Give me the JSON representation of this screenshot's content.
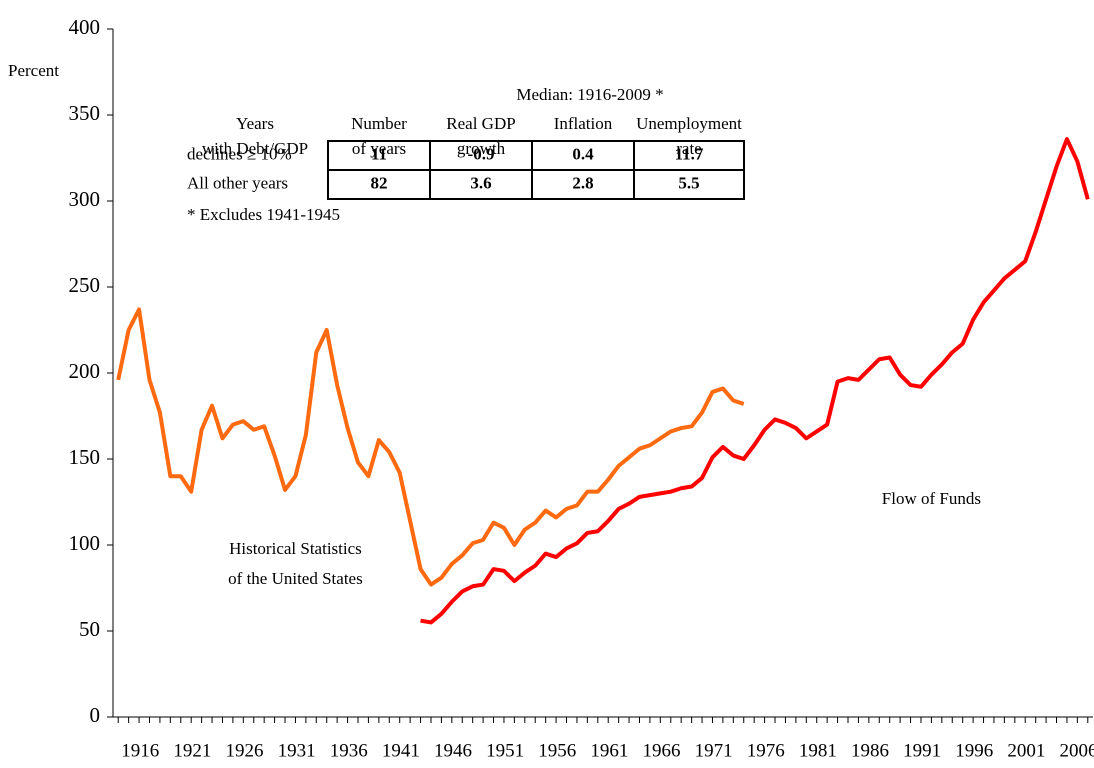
{
  "chart_data": {
    "type": "line",
    "y_label": "Percent",
    "x": [
      1916,
      1917,
      1918,
      1919,
      1920,
      1921,
      1922,
      1923,
      1924,
      1925,
      1926,
      1927,
      1928,
      1929,
      1930,
      1931,
      1932,
      1933,
      1934,
      1935,
      1936,
      1937,
      1938,
      1939,
      1940,
      1941,
      1942,
      1943,
      1944,
      1945,
      1946,
      1947,
      1948,
      1949,
      1950,
      1951,
      1952,
      1953,
      1954,
      1955,
      1956,
      1957,
      1958,
      1959,
      1960,
      1961,
      1962,
      1963,
      1964,
      1965,
      1966,
      1967,
      1968,
      1969,
      1970,
      1971,
      1972,
      1973,
      1974,
      1975,
      1976,
      1977,
      1978,
      1979,
      1980,
      1981,
      1982,
      1983,
      1984,
      1985,
      1986,
      1987,
      1988,
      1989,
      1990,
      1991,
      1992,
      1993,
      1994,
      1995,
      1996,
      1997,
      1998,
      1999,
      2000,
      2001,
      2002,
      2003,
      2004,
      2005,
      2006,
      2007,
      2008,
      2009
    ],
    "series": [
      {
        "color": "#ff6a10",
        "values": [
          196,
          225,
          237,
          196,
          177,
          140,
          140,
          131,
          167,
          181,
          162,
          170,
          172,
          167,
          169,
          152,
          132,
          140,
          164,
          212,
          225,
          193,
          168,
          148,
          140,
          161,
          154,
          142,
          114,
          86,
          77,
          81,
          89,
          94,
          101,
          103,
          113,
          110,
          100,
          109,
          113,
          120,
          116,
          121,
          123,
          131,
          131,
          138,
          146,
          151,
          156,
          158,
          162,
          166,
          168,
          169,
          177,
          189,
          191,
          184,
          182,
          null,
          null,
          null,
          null,
          null,
          null,
          null,
          null,
          null,
          null,
          null,
          null,
          null,
          null,
          null,
          null,
          null,
          null,
          null,
          null,
          null,
          null,
          null,
          null,
          null,
          null,
          null,
          null,
          null,
          null,
          null,
          null,
          null
        ]
      },
      {
        "color": "#ff0000",
        "values": [
          null,
          null,
          null,
          null,
          null,
          null,
          null,
          null,
          null,
          null,
          null,
          null,
          null,
          null,
          null,
          null,
          null,
          null,
          null,
          null,
          null,
          null,
          null,
          null,
          null,
          null,
          null,
          null,
          null,
          56,
          55,
          60,
          67,
          73,
          76,
          77,
          86,
          85,
          79,
          84,
          88,
          95,
          93,
          98,
          101,
          107,
          108,
          114,
          121,
          124,
          128,
          129,
          130,
          131,
          133,
          134,
          139,
          151,
          157,
          152,
          150,
          158,
          167,
          173,
          171,
          168,
          162,
          166,
          170,
          195,
          197,
          196,
          202,
          208,
          209,
          199,
          193,
          192,
          199,
          205,
          212,
          217,
          231,
          241,
          248,
          255,
          260,
          265,
          282,
          301,
          320,
          336,
          323,
          301
        ]
      }
    ],
    "xlim": [
      1915.5,
      2009.5
    ],
    "xticks": [
      1916,
      1921,
      1926,
      1931,
      1936,
      1941,
      1946,
      1951,
      1956,
      1961,
      1966,
      1971,
      1976,
      1981,
      1986,
      1991,
      1996,
      2001,
      2006
    ],
    "ylim": [
      0,
      400
    ],
    "yticks": [
      0,
      50,
      100,
      150,
      200,
      250,
      300,
      350,
      400
    ],
    "annotations": [
      {
        "lines": [
          "Historical Statistics",
          "of the United States"
        ],
        "x": 1933,
        "y": 97
      },
      {
        "lines": [
          "Flow of Funds"
        ],
        "x": 1994,
        "y": 126
      }
    ]
  },
  "table": {
    "title": "Median: 1916-2009 *",
    "stub_header": [
      "Years",
      "with Debt/GDP"
    ],
    "columns": [
      [
        "Number",
        "of years"
      ],
      [
        "Real GDP",
        "growth"
      ],
      [
        "Inflation"
      ],
      [
        "Unemployment",
        "rate"
      ]
    ],
    "rows": [
      {
        "label": "declines ≥ 10%",
        "cells": [
          "11",
          "-0.9",
          "0.4",
          "11.7"
        ]
      },
      {
        "label": "All other years",
        "cells": [
          "82",
          "3.6",
          "2.8",
          "5.5"
        ]
      }
    ],
    "footnote": "* Excludes 1941-1945"
  }
}
